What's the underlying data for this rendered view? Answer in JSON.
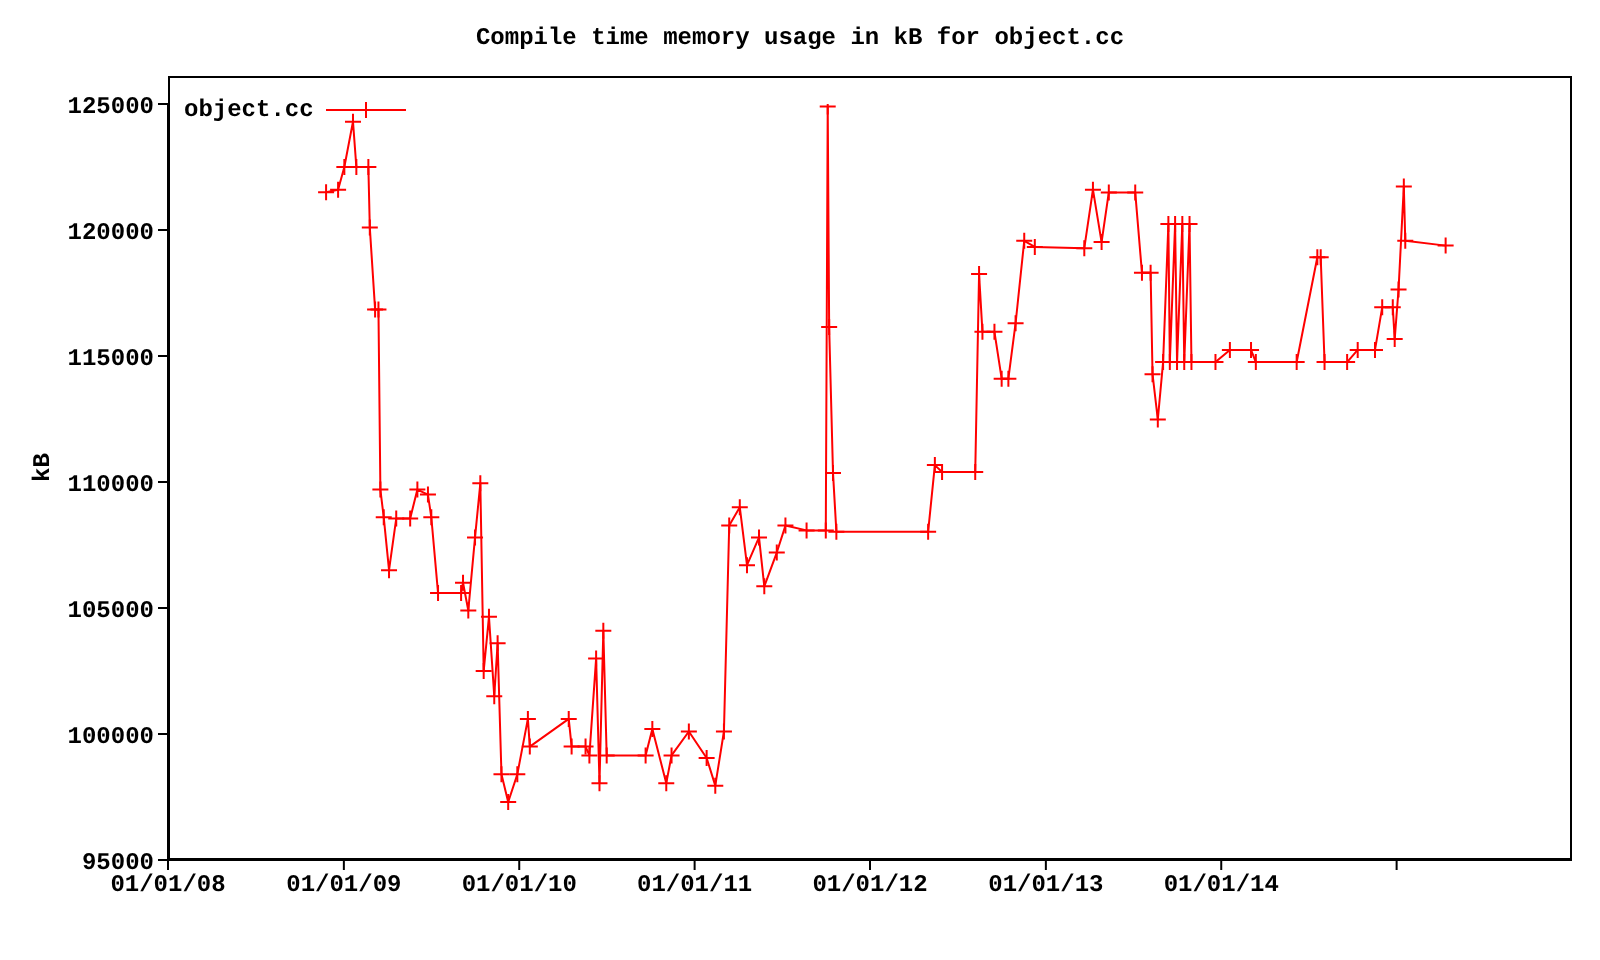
{
  "chart_data": {
    "type": "line",
    "title": "Compile time memory usage in kB for object.cc",
    "ylabel": "kB",
    "xlim": [
      "2008-01-01",
      "2016-01-01"
    ],
    "xticks": [
      {
        "value": "2008-01-01",
        "label": "01/01/08"
      },
      {
        "value": "2009-01-01",
        "label": "01/01/09"
      },
      {
        "value": "2010-01-01",
        "label": "01/01/10"
      },
      {
        "value": "2011-01-01",
        "label": "01/01/11"
      },
      {
        "value": "2012-01-01",
        "label": "01/01/12"
      },
      {
        "value": "2013-01-01",
        "label": "01/01/13"
      },
      {
        "value": "2014-01-01",
        "label": "01/01/14"
      },
      {
        "value": "2015-01-01",
        "label": null
      }
    ],
    "ylim": [
      95000,
      125000
    ],
    "yticks": [
      95000,
      100000,
      105000,
      110000,
      115000,
      120000,
      125000
    ],
    "grid": false,
    "legend": "top left",
    "marker": "cross",
    "line_style": "solid",
    "x": [
      "2008-11-25",
      "2008-12-20",
      "2009-01-02",
      "2009-01-20",
      "2009-01-27",
      "2009-02-21",
      "2009-02-24",
      "2009-03-07",
      "2009-03-14",
      "2009-03-18",
      "2009-03-25",
      "2009-04-05",
      "2009-04-20",
      "2009-05-19",
      "2009-06-03",
      "2009-06-25",
      "2009-07-02",
      "2009-07-16",
      "2009-09-02",
      "2009-09-06",
      "2009-09-17",
      "2009-10-01",
      "2009-10-12",
      "2009-10-19",
      "2009-10-30",
      "2009-11-10",
      "2009-11-17",
      "2009-11-25",
      "2009-12-09",
      "2009-12-28",
      "2010-01-19",
      "2010-01-23",
      "2010-04-14",
      "2010-04-20",
      "2010-05-19",
      "2010-05-27",
      "2010-06-10",
      "2010-06-17",
      "2010-06-25",
      "2010-07-02",
      "2010-09-21",
      "2010-10-05",
      "2010-11-03",
      "2010-11-14",
      "2010-12-20",
      "2011-01-26",
      "2011-02-13",
      "2011-03-03",
      "2011-03-14",
      "2011-04-05",
      "2011-04-20",
      "2011-05-15",
      "2011-05-26",
      "2011-06-21",
      "2011-07-09",
      "2011-08-22",
      "2011-10-01",
      "2011-10-05",
      "2011-10-08",
      "2011-10-16",
      "2011-10-23",
      "2012-05-01",
      "2012-05-15",
      "2012-05-30",
      "2012-08-07",
      "2012-08-15",
      "2012-08-22",
      "2012-09-16",
      "2012-10-01",
      "2012-10-15",
      "2012-10-30",
      "2012-11-17",
      "2012-12-09",
      "2013-03-22",
      "2013-04-09",
      "2013-04-27",
      "2013-05-12",
      "2013-07-06",
      "2013-07-20",
      "2013-08-07",
      "2013-08-11",
      "2013-08-22",
      "2013-09-02",
      "2013-09-13",
      "2013-09-16",
      "2013-09-27",
      "2013-10-01",
      "2013-10-12",
      "2013-10-16",
      "2013-10-27",
      "2013-10-31",
      "2013-12-20",
      "2014-01-19",
      "2014-03-04",
      "2014-03-14",
      "2014-06-07",
      "2014-07-20",
      "2014-07-27",
      "2014-08-04",
      "2014-09-20",
      "2014-10-12",
      "2014-11-17",
      "2014-12-02",
      "2014-12-24",
      "2014-12-28",
      "2015-01-05",
      "2015-01-16",
      "2015-01-19",
      "2015-04-13"
    ],
    "series": [
      {
        "name": "object.cc",
        "color": "#ff0000",
        "values": [
          121500,
          121600,
          122500,
          124300,
          122500,
          122500,
          120100,
          116850,
          116850,
          109700,
          108600,
          106500,
          108550,
          108550,
          109700,
          109500,
          108600,
          105600,
          105600,
          106000,
          104900,
          107800,
          109950,
          102500,
          104650,
          101500,
          103600,
          98400,
          97300,
          98400,
          100600,
          99500,
          100600,
          99500,
          99500,
          99150,
          103000,
          98050,
          104100,
          99150,
          99150,
          100200,
          98050,
          99150,
          100100,
          99050,
          97950,
          100100,
          108270,
          109000,
          106700,
          107800,
          105860,
          107200,
          108270,
          108080,
          108080,
          124900,
          116150,
          110360,
          108030,
          108030,
          110670,
          110400,
          110400,
          118250,
          115960,
          115960,
          114100,
          114100,
          116300,
          119570,
          119330,
          119280,
          121600,
          119520,
          121490,
          121490,
          118300,
          118300,
          114280,
          112480,
          114760,
          120240,
          114760,
          120240,
          114760,
          120240,
          114760,
          120240,
          114760,
          114760,
          115240,
          115240,
          114760,
          114760,
          118920,
          118920,
          114760,
          114760,
          115240,
          115240,
          116930,
          116930,
          115670,
          117640,
          121730,
          119570,
          119380
        ]
      }
    ]
  }
}
